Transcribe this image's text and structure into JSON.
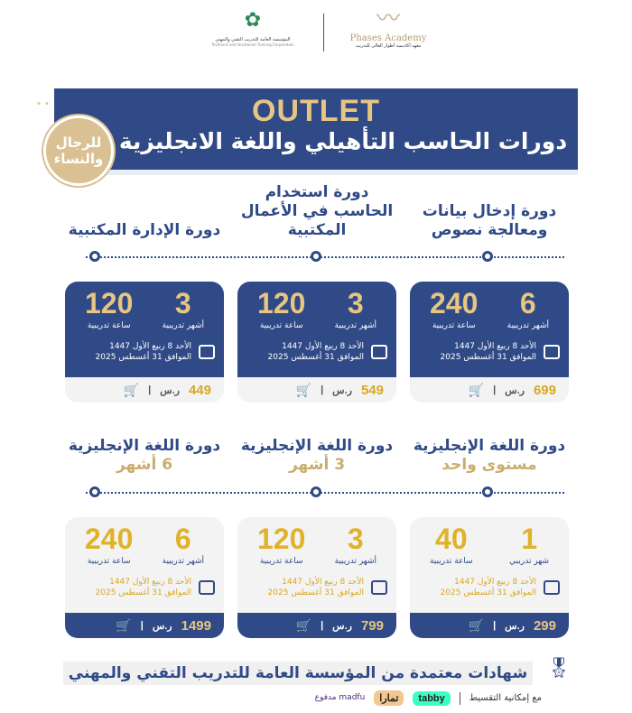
{
  "header": {
    "academy_name": "Phases Academy",
    "academy_sub": "معهد أكاديمية أطوار العالي للتدريب",
    "tvtc_name": "المؤسسة العامة للتدريب التقني والمهني",
    "tvtc_en": "Technical and Vocational Training Corporation",
    "outlet": "OUTLET",
    "title": "دورات الحاسب التأهيلي واللغة الانجليزية",
    "badge": "للرجال والنساء"
  },
  "courses_row1": [
    {
      "title": "دورة إدخال بيانات ومعالجة نصوص",
      "duration": "6",
      "duration_label": "أشهر تدريبية",
      "hours": "240",
      "hours_label": "ساعة تدريبية",
      "date1": "الأحد 8 ربيع الأول 1447",
      "date2": "الموافق 31 أغسطس 2025",
      "price": "699",
      "currency": "ر.س"
    },
    {
      "title": "دورة استخدام الحاسب في الأعمال المكتبية",
      "duration": "3",
      "duration_label": "أشهر تدريبية",
      "hours": "120",
      "hours_label": "ساعة تدريبية",
      "date1": "الأحد 8 ربيع الأول 1447",
      "date2": "الموافق 31 أغسطس 2025",
      "price": "549",
      "currency": "ر.س"
    },
    {
      "title": "دورة الإدارة المكتبية",
      "duration": "3",
      "duration_label": "أشهر تدريبية",
      "hours": "120",
      "hours_label": "ساعة تدريبية",
      "date1": "الأحد 8 ربيع الأول 1447",
      "date2": "الموافق 31 أغسطس 2025",
      "price": "449",
      "currency": "ر.س"
    }
  ],
  "courses_row2": [
    {
      "title": "دورة اللغة الإنجليزية",
      "title_hl": "مستوى واحد",
      "duration": "1",
      "duration_label": "شهر تدريبي",
      "hours": "40",
      "hours_label": "ساعة تدريبية",
      "date1": "الأحد 8 ربيع الأول 1447",
      "date2": "الموافق 31 أغسطس 2025",
      "price": "299",
      "currency": "ر.س"
    },
    {
      "title": "دورة اللغة الإنجليزية",
      "title_hl": "3 أشهر",
      "duration": "3",
      "duration_label": "أشهر تدريبية",
      "hours": "120",
      "hours_label": "ساعة تدريبية",
      "date1": "الأحد 8 ربيع الأول 1447",
      "date2": "الموافق 31 أغسطس 2025",
      "price": "799",
      "currency": "ر.س"
    },
    {
      "title": "دورة اللغة الإنجليزية",
      "title_hl": "6 أشهر",
      "duration": "6",
      "duration_label": "أشهر تدريبية",
      "hours": "240",
      "hours_label": "ساعة تدريبية",
      "date1": "الأحد 8 ربيع الأول 1447",
      "date2": "الموافق 31 أغسطس 2025",
      "price": "1499",
      "currency": "ر.س"
    }
  ],
  "footer": {
    "certificate": "شهادات معتمدة من المؤسسة العامة للتدريب التقني والمهني",
    "installment": "مع إمكانية التقسيط",
    "tabby": "tabby",
    "tamara": "تمارا",
    "madfu": "madfu مدفوع"
  },
  "colors": {
    "primary": "#2f4a86",
    "gold": "#e7c582",
    "price_gold": "#d8a920"
  }
}
